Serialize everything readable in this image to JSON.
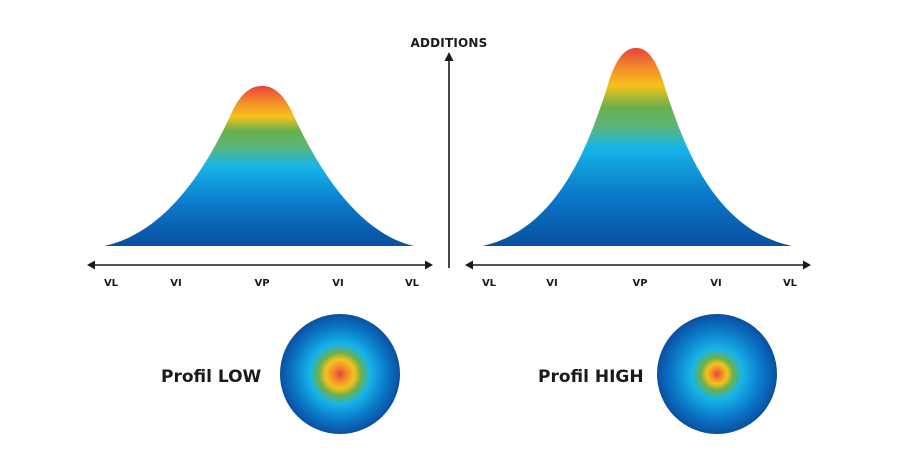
{
  "vertical_axis": {
    "label": "ADDITIONS"
  },
  "left_panel": {
    "ticks": [
      "VL",
      "VI",
      "VP",
      "VI",
      "VL"
    ],
    "profile_label": "Profil LOW"
  },
  "right_panel": {
    "ticks": [
      "VL",
      "VI",
      "VP",
      "VI",
      "VL"
    ],
    "profile_label": "Profil HIGH"
  },
  "colors": {
    "peak": "#e8423b",
    "orange": "#f28c28",
    "yellow": "#f6c21c",
    "green": "#6ab04c",
    "cyan": "#17b5e8",
    "blue": "#0a77c8",
    "deep_blue": "#0a4fa0",
    "axis": "#1a1a1a"
  }
}
